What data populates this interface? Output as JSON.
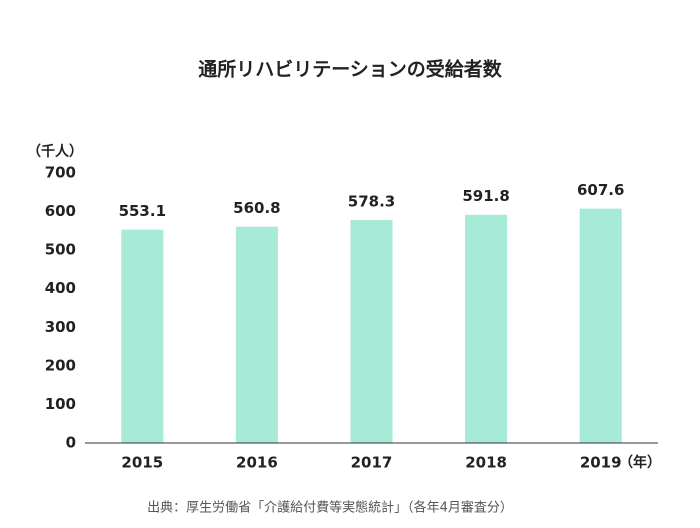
{
  "chart_data": {
    "type": "bar",
    "title": "通所リハビリテーションの受給者数",
    "y_axis_label": "（千人）",
    "x_axis_label": "（年）",
    "categories": [
      "2015",
      "2016",
      "2017",
      "2018",
      "2019"
    ],
    "values": [
      553.1,
      560.8,
      578.3,
      591.8,
      607.6
    ],
    "color": "#a6ead7",
    "ylim": [
      0,
      700
    ],
    "yticks": [
      0,
      100,
      200,
      300,
      400,
      500,
      600,
      700
    ],
    "grid": false,
    "source": "出典：厚生労働省「介護給付費等実態統計」（各年4月審査分）"
  }
}
